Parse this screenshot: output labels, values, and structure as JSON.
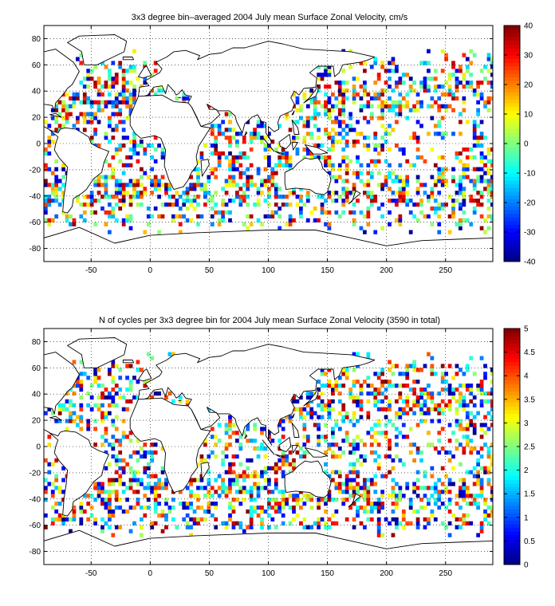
{
  "chart_data": [
    {
      "type": "heatmap",
      "title": "3x3 degree bin–averaged 2004 July mean Surface Zonal Velocity, cm/s",
      "xlabel": "",
      "ylabel": "",
      "xlim": [
        -90,
        290
      ],
      "ylim": [
        -90,
        90
      ],
      "x_ticks": [
        -50,
        0,
        50,
        100,
        150,
        200,
        250
      ],
      "y_ticks": [
        80,
        60,
        40,
        20,
        0,
        -20,
        -40,
        -60,
        -80
      ],
      "grid": true,
      "grid_style": "dotted",
      "bin_size_deg": 3,
      "colormap": "jet",
      "colorbar": {
        "min": -40,
        "max": 40,
        "ticks": [
          40,
          30,
          20,
          10,
          0,
          -10,
          -20,
          -30,
          -40
        ]
      },
      "seed": 11
    },
    {
      "type": "heatmap",
      "title": "N of cycles per 3x3 degree bin for 2004 July mean Surface Zonal Velocity (3590 in total)",
      "xlabel": "",
      "ylabel": "",
      "xlim": [
        -90,
        290
      ],
      "ylim": [
        -90,
        90
      ],
      "x_ticks": [
        -50,
        0,
        50,
        100,
        150,
        200,
        250
      ],
      "y_ticks": [
        80,
        60,
        40,
        20,
        0,
        -20,
        -40,
        -60,
        -80
      ],
      "grid": true,
      "grid_style": "dotted",
      "bin_size_deg": 3,
      "colormap": "jet",
      "colorbar": {
        "min": 0,
        "max": 5,
        "ticks": [
          5,
          4.5,
          4,
          3.5,
          3,
          2.5,
          2,
          1.5,
          1,
          0.5,
          0
        ]
      },
      "seed": 29
    }
  ]
}
